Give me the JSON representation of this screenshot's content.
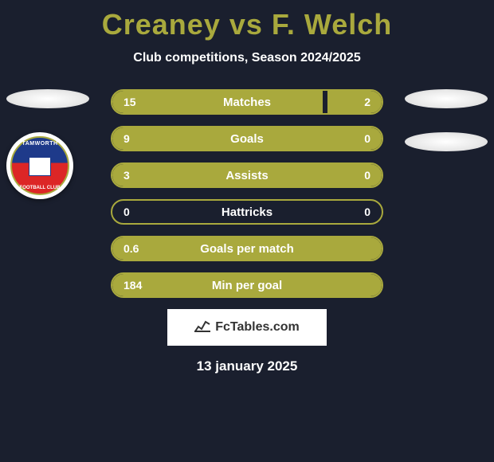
{
  "title": "Creaney vs F. Welch",
  "subtitle": "Club competitions, Season 2024/2025",
  "badge": {
    "top_text": "TAMWORTH",
    "bottom_text": "FOOTBALL CLUB"
  },
  "stats": [
    {
      "label": "Matches",
      "left_val": "15",
      "right_val": "2",
      "left_fill_pct": 78,
      "right_fill_pct": 20
    },
    {
      "label": "Goals",
      "left_val": "9",
      "right_val": "0",
      "left_fill_pct": 100,
      "right_fill_pct": 0
    },
    {
      "label": "Assists",
      "left_val": "3",
      "right_val": "0",
      "left_fill_pct": 100,
      "right_fill_pct": 0
    },
    {
      "label": "Hattricks",
      "left_val": "0",
      "right_val": "0",
      "left_fill_pct": 0,
      "right_fill_pct": 0
    },
    {
      "label": "Goals per match",
      "left_val": "0.6",
      "right_val": "",
      "left_fill_pct": 100,
      "right_fill_pct": 0
    },
    {
      "label": "Min per goal",
      "left_val": "184",
      "right_val": "",
      "left_fill_pct": 100,
      "right_fill_pct": 0
    }
  ],
  "source": "FcTables.com",
  "date": "13 january 2025",
  "colors": {
    "background": "#1a1f2e",
    "accent": "#a9a93d",
    "text_white": "#ffffff",
    "source_bg": "#ffffff"
  }
}
